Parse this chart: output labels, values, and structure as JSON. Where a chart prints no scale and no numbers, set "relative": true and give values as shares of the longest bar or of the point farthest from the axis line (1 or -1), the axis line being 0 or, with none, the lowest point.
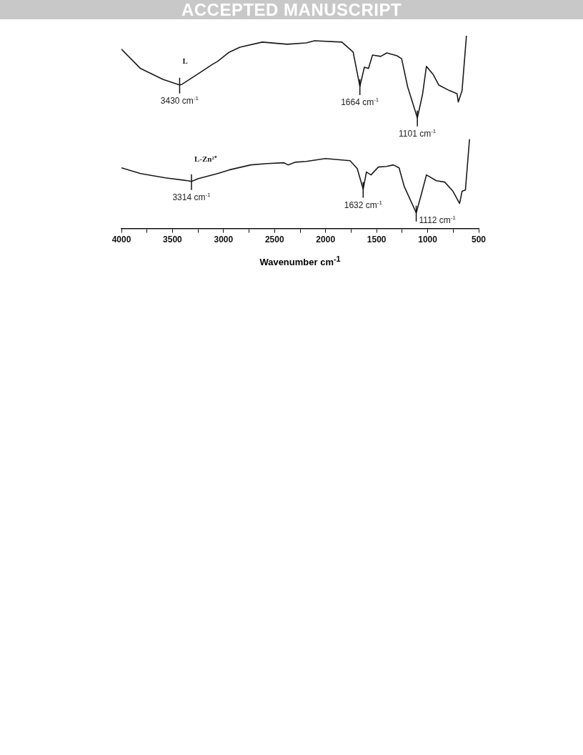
{
  "chart_data": {
    "type": "line",
    "relative": true,
    "xlabel": "Wavenumber cm$^{-1}$",
    "xlim": [
      4000,
      500
    ],
    "xticks": [
      4000,
      {
        "value": 3750,
        "label": null
      },
      3500,
      {
        "value": 3250,
        "label": null
      },
      3000,
      {
        "value": 2750,
        "label": null
      },
      2500,
      {
        "value": 2250,
        "label": null
      },
      2000,
      {
        "value": 1750,
        "label": null
      },
      1500,
      {
        "value": 1250,
        "label": null
      },
      1000,
      {
        "value": 750,
        "label": null
      },
      500
    ],
    "grid": false,
    "legend": false,
    "marker": "none",
    "line_style": "solid",
    "tick_labels": "x",
    "series": [
      {
        "name": "L",
        "color": "#1a1a1a",
        "x": [
          4000,
          3813,
          3594,
          3448,
          3430,
          3407,
          3245,
          3107,
          3058,
          2944,
          2839,
          2620,
          2376,
          2189,
          2108,
          1840,
          1730,
          1664,
          1620,
          1580,
          1540,
          1460,
          1400,
          1300,
          1255,
          1195,
          1101,
          1050,
          1012,
          947,
          890,
          785,
          712,
          700,
          663,
          620
        ],
        "values": [
          0.93,
          0.83,
          0.774,
          0.748,
          0.745,
          0.748,
          0.804,
          0.852,
          0.867,
          0.915,
          0.941,
          0.967,
          0.956,
          0.963,
          0.974,
          0.967,
          0.915,
          0.737,
          0.837,
          0.83,
          0.9,
          0.893,
          0.911,
          0.896,
          0.881,
          0.733,
          0.574,
          0.696,
          0.841,
          0.8,
          0.744,
          0.715,
          0.7,
          0.656,
          0.715,
          1.0
        ]
      },
      {
        "name": "L-Zn²⁺",
        "color": "#1a1a1a",
        "x": [
          4000,
          3813,
          3570,
          3350,
          3314,
          3245,
          3058,
          2944,
          2733,
          2571,
          2408,
          2368,
          2295,
          2189,
          2002,
          1760,
          1690,
          1632,
          1600,
          1555,
          1483,
          1402,
          1337,
          1280,
          1230,
          1112,
          1060,
          1012,
          915,
          833,
          752,
          687,
          663,
          630,
          590
        ],
        "values": [
          0.315,
          0.285,
          0.263,
          0.248,
          0.244,
          0.259,
          0.285,
          0.304,
          0.33,
          0.337,
          0.341,
          0.33,
          0.344,
          0.348,
          0.363,
          0.352,
          0.311,
          0.204,
          0.293,
          0.278,
          0.319,
          0.322,
          0.33,
          0.315,
          0.219,
          0.081,
          0.181,
          0.278,
          0.248,
          0.241,
          0.193,
          0.13,
          0.193,
          0.2,
          0.463
        ]
      }
    ],
    "annotations": [
      "ACCEPTED MANUSCRIPT",
      {
        "text": "3430 cm$^{-1}$",
        "x": 3430,
        "y": 0.745
      },
      {
        "text": "1664 cm$^{-1}$",
        "x": 1664,
        "y": 0.737
      },
      {
        "text": "1101 cm$^{-1}$",
        "x": 1101,
        "y": 0.574
      },
      {
        "text": "3314 cm$^{-1}$",
        "x": 3314,
        "y": 0.244
      },
      {
        "text": "1632 cm$^{-1}$",
        "x": 1632,
        "y": 0.204
      },
      {
        "text": "1112 cm$^{-1}$",
        "x": 1112,
        "y": 0.081
      }
    ]
  }
}
